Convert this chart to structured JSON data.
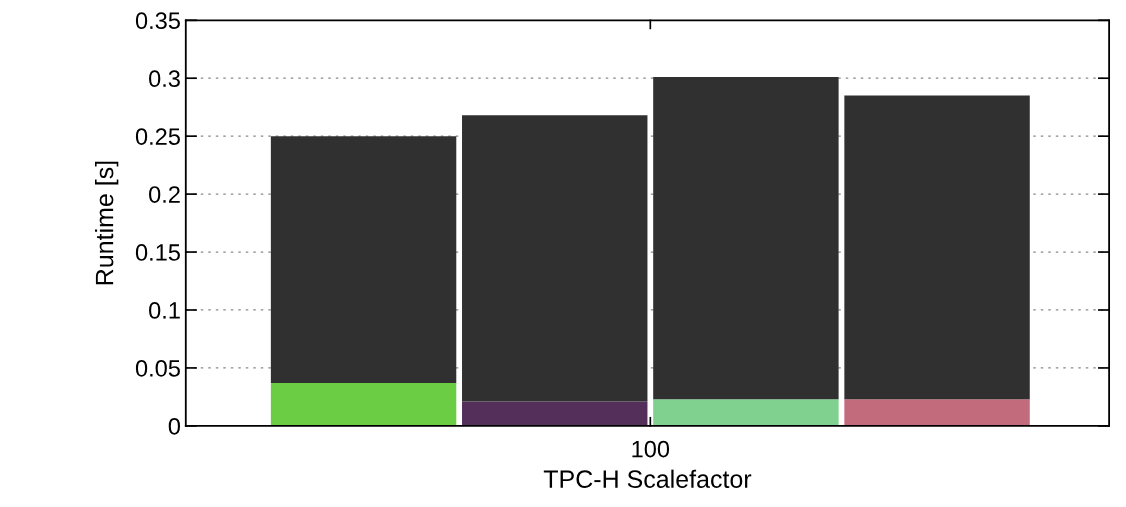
{
  "chart_data": {
    "type": "bar",
    "stacked": true,
    "xlabel": "TPC-H Scalefactor",
    "ylabel": "Runtime [s]",
    "categories": [
      null,
      null,
      null,
      null
    ],
    "series": [
      {
        "colors": [
          "#6acd44",
          "#532f5a",
          "#80d190",
          "#c26b7c"
        ],
        "values": [
          0.037,
          0.021,
          0.023,
          0.023
        ]
      },
      {
        "color": "#303030",
        "values": [
          0.213,
          0.247,
          0.278,
          0.262
        ]
      }
    ],
    "ylim": [
      0,
      0.35
    ],
    "yticks": [
      0,
      0.05,
      0.1,
      0.15,
      0.2,
      0.25,
      0.3,
      0.35
    ],
    "grid": "y",
    "annotations": [
      "100"
    ]
  }
}
